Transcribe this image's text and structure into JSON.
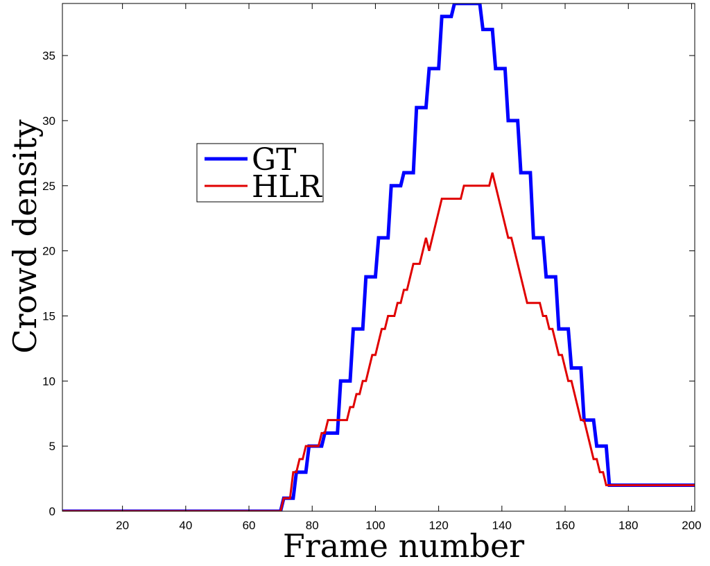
{
  "chart_data": {
    "type": "line",
    "title": "",
    "xlabel": "Frame number",
    "ylabel": "Crowd density",
    "xlim": [
      1,
      201
    ],
    "ylim": [
      0,
      39
    ],
    "xticks": [
      20,
      40,
      60,
      80,
      100,
      120,
      140,
      160,
      180,
      200
    ],
    "yticks": [
      0,
      5,
      10,
      15,
      20,
      25,
      30,
      35
    ],
    "grid": false,
    "legend_position": "upper-left",
    "series": [
      {
        "name": "GT",
        "color": "#0000ff",
        "style": "step",
        "points": [
          [
            1,
            0
          ],
          [
            70,
            0
          ],
          [
            71,
            1
          ],
          [
            74,
            1
          ],
          [
            75,
            3
          ],
          [
            78,
            3
          ],
          [
            79,
            5
          ],
          [
            83,
            5
          ],
          [
            84,
            6
          ],
          [
            88,
            6
          ],
          [
            89,
            10
          ],
          [
            92,
            10
          ],
          [
            93,
            14
          ],
          [
            96,
            14
          ],
          [
            97,
            18
          ],
          [
            100,
            18
          ],
          [
            101,
            21
          ],
          [
            104,
            21
          ],
          [
            105,
            25
          ],
          [
            108,
            25
          ],
          [
            109,
            26
          ],
          [
            112,
            26
          ],
          [
            113,
            31
          ],
          [
            116,
            31
          ],
          [
            117,
            34
          ],
          [
            120,
            34
          ],
          [
            121,
            38
          ],
          [
            124,
            38
          ],
          [
            125,
            39
          ],
          [
            133,
            39
          ],
          [
            134,
            37
          ],
          [
            137,
            37
          ],
          [
            138,
            34
          ],
          [
            141,
            34
          ],
          [
            142,
            30
          ],
          [
            145,
            30
          ],
          [
            146,
            26
          ],
          [
            149,
            26
          ],
          [
            150,
            21
          ],
          [
            153,
            21
          ],
          [
            154,
            18
          ],
          [
            157,
            18
          ],
          [
            158,
            14
          ],
          [
            161,
            14
          ],
          [
            162,
            11
          ],
          [
            165,
            11
          ],
          [
            166,
            7
          ],
          [
            169,
            7
          ],
          [
            170,
            5
          ],
          [
            173,
            5
          ],
          [
            174,
            2
          ],
          [
            201,
            2
          ]
        ]
      },
      {
        "name": "HLR",
        "color": "#e00000",
        "style": "line",
        "points": [
          [
            1,
            0
          ],
          [
            70,
            0
          ],
          [
            71,
            1
          ],
          [
            73,
            1
          ],
          [
            74,
            3
          ],
          [
            75,
            3
          ],
          [
            76,
            4
          ],
          [
            77,
            4
          ],
          [
            78,
            5
          ],
          [
            82,
            5
          ],
          [
            83,
            6
          ],
          [
            84,
            6
          ],
          [
            85,
            7
          ],
          [
            91,
            7
          ],
          [
            92,
            8
          ],
          [
            93,
            8
          ],
          [
            94,
            9
          ],
          [
            95,
            9
          ],
          [
            96,
            10
          ],
          [
            97,
            10
          ],
          [
            98,
            11
          ],
          [
            99,
            12
          ],
          [
            100,
            12
          ],
          [
            101,
            13
          ],
          [
            102,
            14
          ],
          [
            103,
            14
          ],
          [
            104,
            15
          ],
          [
            106,
            15
          ],
          [
            107,
            16
          ],
          [
            108,
            16
          ],
          [
            109,
            17
          ],
          [
            110,
            17
          ],
          [
            111,
            18
          ],
          [
            112,
            19
          ],
          [
            114,
            19
          ],
          [
            115,
            20
          ],
          [
            116,
            21
          ],
          [
            117,
            20
          ],
          [
            118,
            21
          ],
          [
            119,
            22
          ],
          [
            120,
            23
          ],
          [
            121,
            24
          ],
          [
            127,
            24
          ],
          [
            128,
            25
          ],
          [
            136,
            25
          ],
          [
            137,
            26
          ],
          [
            140,
            23
          ],
          [
            142,
            21
          ],
          [
            143,
            21
          ],
          [
            145,
            19
          ],
          [
            147,
            17
          ],
          [
            148,
            16
          ],
          [
            152,
            16
          ],
          [
            153,
            15
          ],
          [
            154,
            15
          ],
          [
            155,
            14
          ],
          [
            156,
            14
          ],
          [
            157,
            13
          ],
          [
            158,
            12
          ],
          [
            159,
            12
          ],
          [
            160,
            11
          ],
          [
            161,
            10
          ],
          [
            162,
            10
          ],
          [
            163,
            9
          ],
          [
            164,
            8
          ],
          [
            165,
            7
          ],
          [
            166,
            7
          ],
          [
            168,
            5
          ],
          [
            169,
            4
          ],
          [
            170,
            4
          ],
          [
            171,
            3
          ],
          [
            172,
            3
          ],
          [
            173,
            2
          ],
          [
            201,
            2
          ]
        ]
      }
    ]
  }
}
